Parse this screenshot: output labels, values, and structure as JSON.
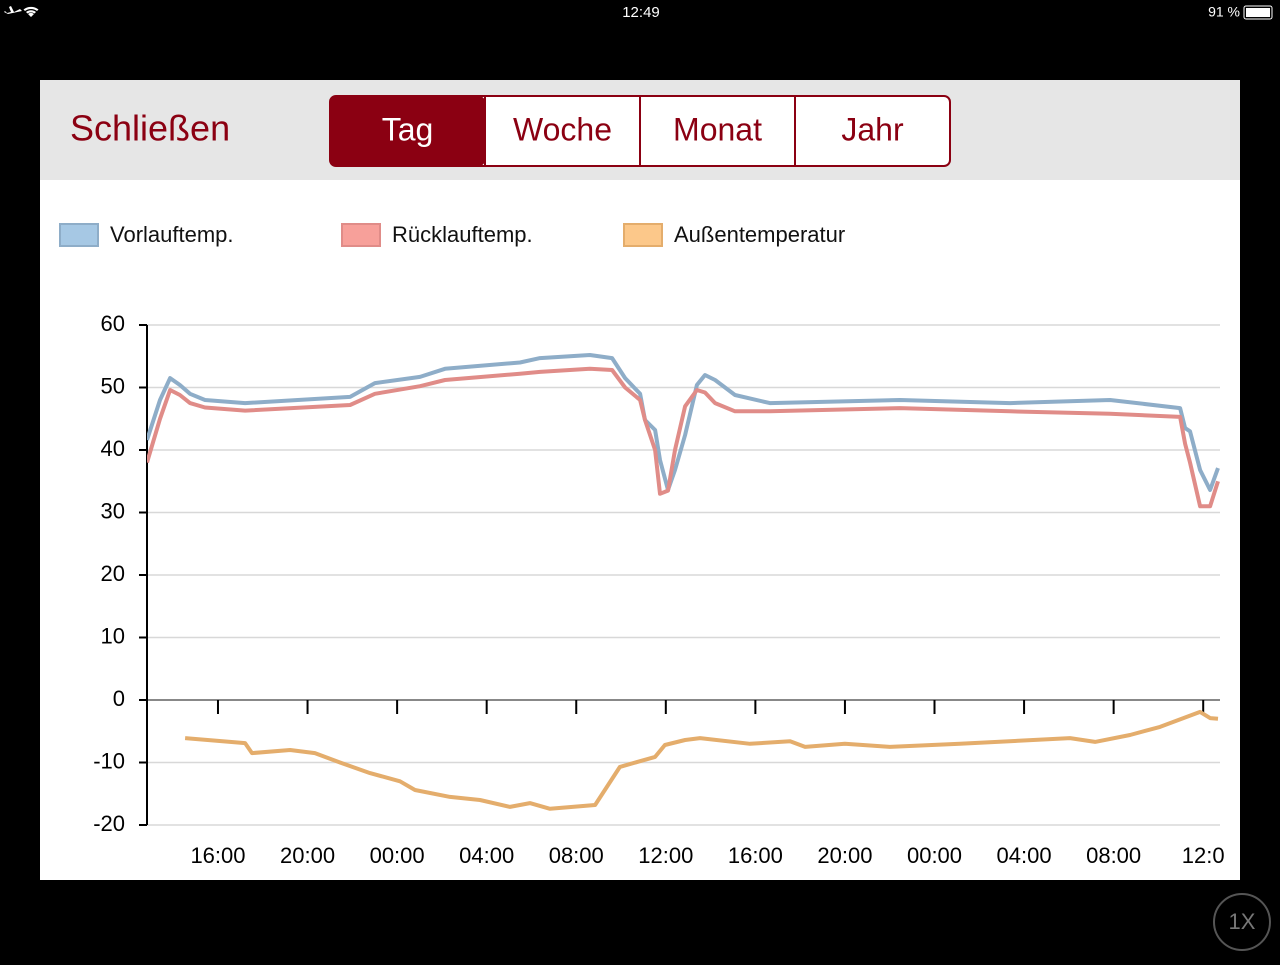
{
  "status_bar": {
    "time": "12:49",
    "battery": "91 %"
  },
  "header": {
    "close": "Schließen",
    "tabs": [
      "Tag",
      "Woche",
      "Monat",
      "Jahr"
    ],
    "selected": 0
  },
  "zoom_button": "1X",
  "chart_data": {
    "type": "line",
    "legend": "top-left",
    "grid": true,
    "xlim": [
      12.83,
      60.75
    ],
    "xticks": [
      {
        "value": 16,
        "label": "16:00"
      },
      {
        "value": 20,
        "label": "20:00"
      },
      {
        "value": 24,
        "label": "00:00"
      },
      {
        "value": 28,
        "label": "04:00"
      },
      {
        "value": 32,
        "label": "08:00"
      },
      {
        "value": 36,
        "label": "12:00"
      },
      {
        "value": 40,
        "label": "16:00"
      },
      {
        "value": 44,
        "label": "20:00"
      },
      {
        "value": 48,
        "label": "00:00"
      },
      {
        "value": 52,
        "label": "04:00"
      },
      {
        "value": 56,
        "label": "08:00"
      },
      {
        "value": 60,
        "label": "12:0"
      }
    ],
    "ylim": [
      -20,
      60
    ],
    "yticks": [
      -20,
      -10,
      0,
      10,
      20,
      30,
      40,
      50,
      60
    ],
    "series": [
      {
        "name": "Vorlauftemp.",
        "color": "#8eadc8",
        "swatch": "#a6c8e4",
        "x": [
          12.83,
          13.41,
          13.86,
          14.3,
          14.75,
          15.42,
          17.21,
          21.9,
          23.01,
          25.02,
          26.14,
          29.49,
          30.38,
          32.61,
          33.6,
          34.18,
          34.85,
          35.07,
          35.52,
          35.74,
          36.1,
          36.41,
          36.86,
          37.39,
          37.75,
          38.2,
          39.09,
          40.65,
          46.46,
          51.37,
          55.84,
          58.97,
          59.19,
          59.41,
          59.86,
          60.31,
          60.66
        ],
        "values": [
          41.6,
          48,
          51.5,
          50.4,
          49,
          48,
          47.5,
          48.5,
          50.7,
          51.7,
          53,
          54,
          54.7,
          55.2,
          54.7,
          51.5,
          49,
          44.8,
          43.2,
          38.4,
          33.6,
          36.8,
          42.4,
          50.4,
          52,
          51.2,
          48.8,
          47.5,
          48,
          47.5,
          48,
          46.7,
          43.5,
          43,
          36.8,
          33.6,
          37.1
        ]
      },
      {
        "name": "Rücklauftemp.",
        "color": "#e08c88",
        "swatch": "#f7a09a",
        "x": [
          12.83,
          13.41,
          13.86,
          14.3,
          14.75,
          15.42,
          17.21,
          21.9,
          23.01,
          25.02,
          26.14,
          29.49,
          30.38,
          32.61,
          33.6,
          34.18,
          34.85,
          35.07,
          35.52,
          35.74,
          36.1,
          36.41,
          36.86,
          37.39,
          37.75,
          38.2,
          39.09,
          40.65,
          46.46,
          51.37,
          55.84,
          58.97,
          59.19,
          59.41,
          59.86,
          60.31,
          60.66
        ],
        "values": [
          38,
          45,
          49.6,
          48.8,
          47.5,
          46.8,
          46.3,
          47.2,
          49,
          50.2,
          51.2,
          52.2,
          52.5,
          53,
          52.8,
          50,
          48,
          44.8,
          40,
          33,
          33.5,
          40,
          47,
          49.6,
          49.2,
          47.5,
          46.2,
          46.2,
          46.7,
          46.2,
          45.8,
          45.3,
          41,
          38,
          31,
          31,
          35
        ]
      },
      {
        "name": "Außentemperatur",
        "color": "#e4ad6c",
        "swatch": "#fcc88a",
        "x": [
          14.53,
          17.21,
          17.52,
          19.22,
          20.33,
          21.45,
          22.79,
          24.13,
          24.8,
          26.36,
          27.7,
          29.04,
          29.93,
          30.83,
          32.84,
          33.95,
          35.52,
          35.96,
          36.86,
          37.53,
          39.76,
          41.55,
          42.22,
          44.0,
          46.01,
          49.14,
          54.05,
          55.17,
          56.73,
          58.07,
          59.86,
          60.31,
          60.66
        ],
        "values": [
          -6.1,
          -6.9,
          -8.5,
          -8,
          -8.5,
          -10,
          -11.7,
          -13,
          -14.4,
          -15.5,
          -16,
          -17.1,
          -16.5,
          -17.4,
          -16.8,
          -10.7,
          -9.1,
          -7.2,
          -6.4,
          -6.1,
          -7,
          -6.6,
          -7.5,
          -7,
          -7.5,
          -7,
          -6.1,
          -6.7,
          -5.6,
          -4.3,
          -1.9,
          -2.9,
          -3
        ]
      }
    ]
  }
}
